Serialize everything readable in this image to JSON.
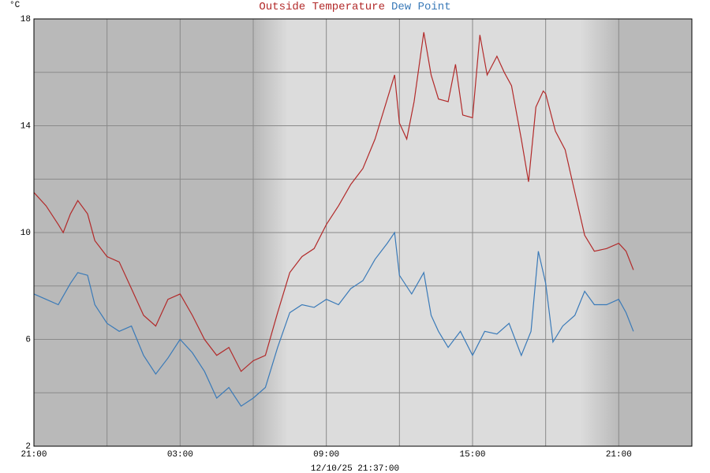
{
  "chart_data": {
    "type": "line",
    "y_unit_label": "°C",
    "timestamp": "12/10/25 21:37:00",
    "xlim": [
      0,
      27
    ],
    "xticks": [
      {
        "value": 0,
        "label": "21:00"
      },
      {
        "value": 6,
        "label": "03:00"
      },
      {
        "value": 12,
        "label": "09:00"
      },
      {
        "value": 18,
        "label": "15:00"
      },
      {
        "value": 24,
        "label": "21:00"
      }
    ],
    "xgrid_minor": [
      3,
      9,
      15,
      21
    ],
    "ylim": [
      2,
      18
    ],
    "yticks": [
      2,
      6,
      10,
      14,
      18
    ],
    "ygrid_minor": [
      4,
      8,
      12,
      16
    ],
    "grid": true,
    "series": [
      {
        "name": "Outside Temperature",
        "color": "#b22a2a",
        "x": [
          0,
          0.5,
          1,
          1.2,
          1.5,
          1.8,
          2.2,
          2.5,
          3,
          3.5,
          4,
          4.5,
          5,
          5.5,
          6,
          6.5,
          7,
          7.5,
          8,
          8.5,
          9,
          9.5,
          10,
          10.5,
          11,
          11.5,
          12,
          12.5,
          13,
          13.5,
          14,
          14.5,
          14.8,
          15,
          15.3,
          15.6,
          16,
          16.3,
          16.6,
          17,
          17.3,
          17.6,
          18,
          18.3,
          18.6,
          19,
          19.3,
          19.6,
          20,
          20.3,
          20.6,
          20.9,
          21,
          21.4,
          21.8,
          22.2,
          22.6,
          23,
          23.5,
          24,
          24.3,
          24.6
        ],
        "values": [
          11.5,
          11.0,
          10.3,
          10.0,
          10.7,
          11.2,
          10.7,
          9.7,
          9.1,
          8.9,
          7.9,
          6.9,
          6.5,
          7.5,
          7.7,
          6.9,
          6.0,
          5.4,
          5.7,
          4.8,
          5.2,
          5.4,
          7.0,
          8.5,
          9.1,
          9.4,
          10.3,
          11.0,
          11.8,
          12.4,
          13.5,
          15.0,
          15.9,
          14.1,
          13.5,
          14.9,
          17.5,
          15.9,
          15.0,
          14.9,
          16.3,
          14.4,
          14.3,
          17.4,
          15.9,
          16.6,
          16.0,
          15.5,
          13.5,
          11.9,
          14.7,
          15.3,
          15.2,
          13.8,
          13.1,
          11.5,
          9.9,
          9.3,
          9.4,
          9.6,
          9.3,
          8.6
        ]
      },
      {
        "name": "Dew Point",
        "color": "#3a7ab8",
        "x": [
          0,
          0.5,
          1,
          1.5,
          1.8,
          2.2,
          2.5,
          3,
          3.5,
          4,
          4.5,
          5,
          5.5,
          6,
          6.5,
          7,
          7.5,
          8,
          8.5,
          9,
          9.5,
          10,
          10.5,
          11,
          11.5,
          12,
          12.5,
          13,
          13.5,
          14,
          14.5,
          14.8,
          15,
          15.5,
          16,
          16.3,
          16.6,
          17,
          17.5,
          18,
          18.5,
          19,
          19.5,
          20,
          20.4,
          20.7,
          21,
          21.3,
          21.7,
          22.2,
          22.6,
          23,
          23.5,
          24,
          24.3,
          24.6
        ],
        "values": [
          7.7,
          7.5,
          7.3,
          8.1,
          8.5,
          8.4,
          7.3,
          6.6,
          6.3,
          6.5,
          5.4,
          4.7,
          5.3,
          6.0,
          5.5,
          4.8,
          3.8,
          4.2,
          3.5,
          3.8,
          4.2,
          5.7,
          7.0,
          7.3,
          7.2,
          7.5,
          7.3,
          7.9,
          8.2,
          9.0,
          9.6,
          10.0,
          8.4,
          7.7,
          8.5,
          6.9,
          6.3,
          5.7,
          6.3,
          5.4,
          6.3,
          6.2,
          6.6,
          5.4,
          6.3,
          9.3,
          8.1,
          5.9,
          6.5,
          6.9,
          7.8,
          7.3,
          7.3,
          7.5,
          7.0,
          6.3
        ]
      }
    ]
  }
}
